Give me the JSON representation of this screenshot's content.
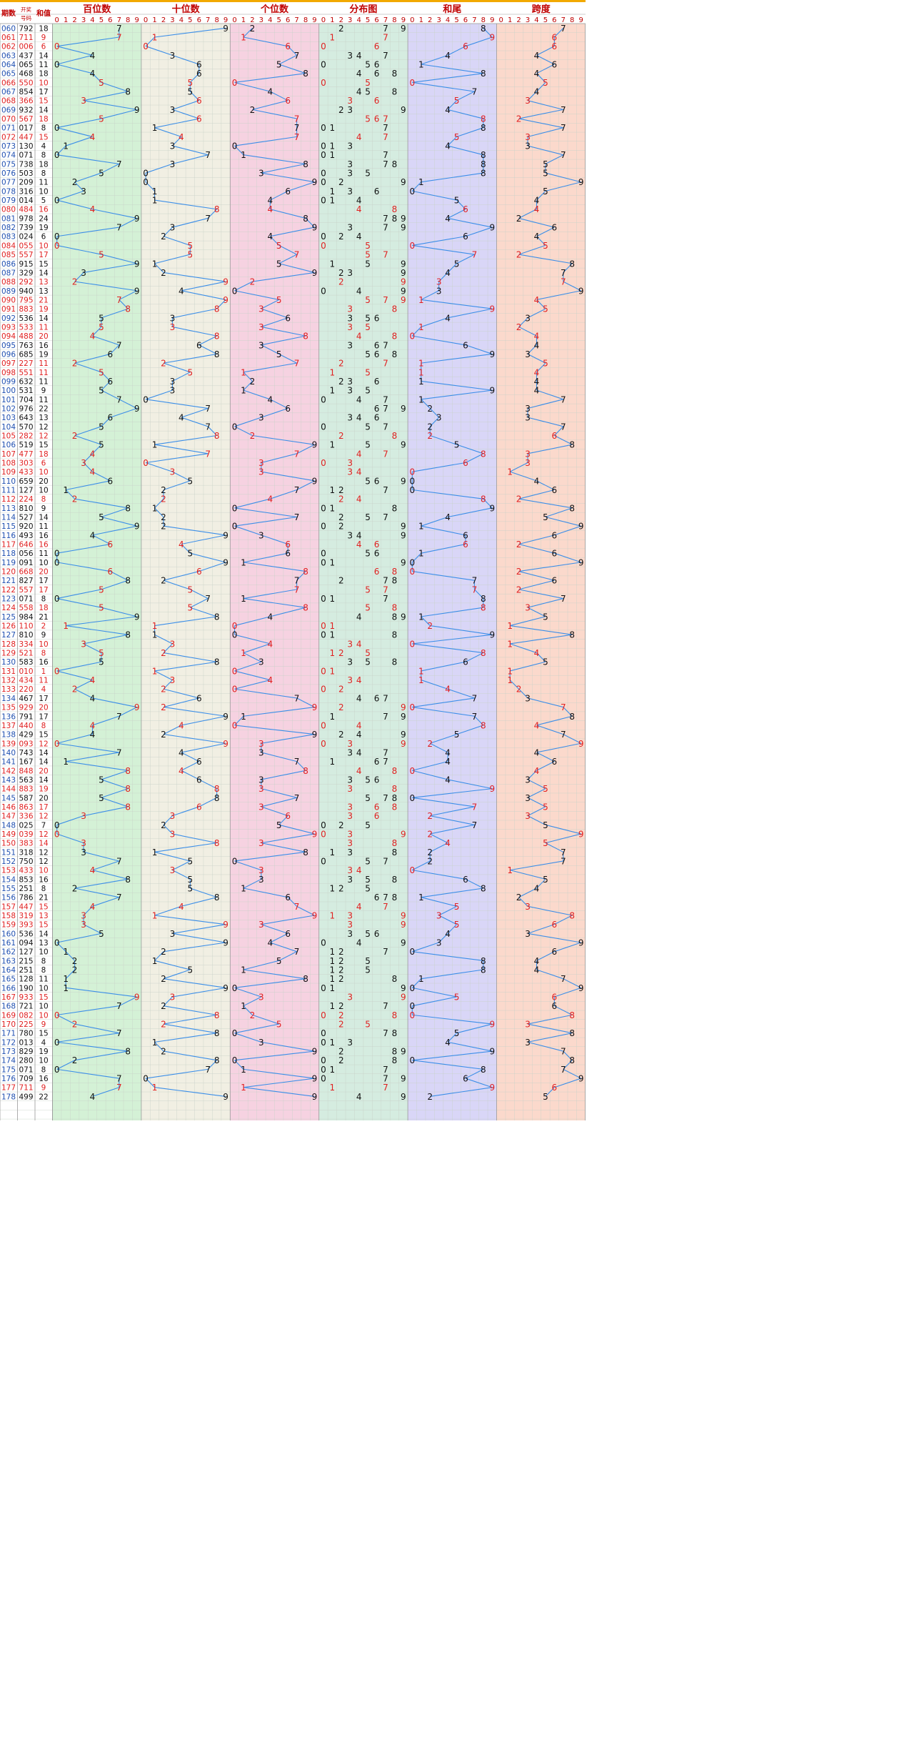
{
  "chart_data": {
    "type": "table",
    "header": {
      "period": "期数",
      "draw": "开奖号码",
      "sum": "和值",
      "groups": [
        "百位数",
        "十位数",
        "个位数",
        "分布图",
        "和尾",
        "跨度"
      ],
      "digits": [
        "0",
        "1",
        "2",
        "3",
        "4",
        "5",
        "6",
        "7",
        "8",
        "9"
      ]
    },
    "colors": {
      "accent_top": "#f2a900",
      "title": "#c00000",
      "period_text": "#1f4fb0",
      "red_number": "#e02020",
      "line": "#3b8ee8",
      "bg_hundreds": "#d4f1d6",
      "bg_tens": "#f1efe3",
      "bg_units": "#f6d2e1",
      "bg_distribution": "#d5ece0",
      "bg_sum_tail": "#d9d6f7",
      "bg_span": "#fbd9cc"
    },
    "draws": [
      "792",
      "711",
      "006",
      "437",
      "065",
      "468",
      "550",
      "854",
      "366",
      "932",
      "567",
      "017",
      "447",
      "130",
      "071",
      "738",
      "503",
      "209",
      "316",
      "014",
      "484",
      "978",
      "739",
      "024",
      "055",
      "557",
      "915",
      "329",
      "292",
      "940",
      "795",
      "883",
      "536",
      "533",
      "488",
      "763",
      "685",
      "227",
      "551",
      "632",
      "531",
      "704",
      "976",
      "643",
      "570",
      "282",
      "519",
      "477",
      "303",
      "433",
      "659",
      "127",
      "224",
      "810",
      "527",
      "920",
      "493",
      "646",
      "056",
      "091",
      "668",
      "827",
      "557",
      "071",
      "558",
      "984",
      "110",
      "810",
      "334",
      "521",
      "583",
      "010",
      "434",
      "220",
      "467",
      "929",
      "791",
      "440",
      "429",
      "093",
      "743",
      "167",
      "848",
      "563",
      "883",
      "587",
      "863",
      "336",
      "025",
      "039",
      "383",
      "318",
      "750",
      "433",
      "853",
      "251",
      "786",
      "447",
      "319",
      "393",
      "536",
      "094",
      "127",
      "215",
      "251",
      "128",
      "190",
      "933",
      "721",
      "082",
      "225",
      "780",
      "013",
      "829",
      "280",
      "071",
      "709",
      "711",
      "499"
    ],
    "red_indices": [
      1,
      2,
      6,
      8,
      10,
      12,
      20,
      24,
      25,
      28,
      30,
      31,
      33,
      34,
      37,
      38,
      45,
      47,
      48,
      49,
      52,
      57,
      60,
      62,
      64,
      66,
      68,
      69,
      71,
      72,
      73,
      75,
      77,
      79,
      82,
      84,
      86,
      87,
      89,
      90,
      93,
      97,
      98,
      99,
      107,
      109,
      110,
      117
    ]
  }
}
